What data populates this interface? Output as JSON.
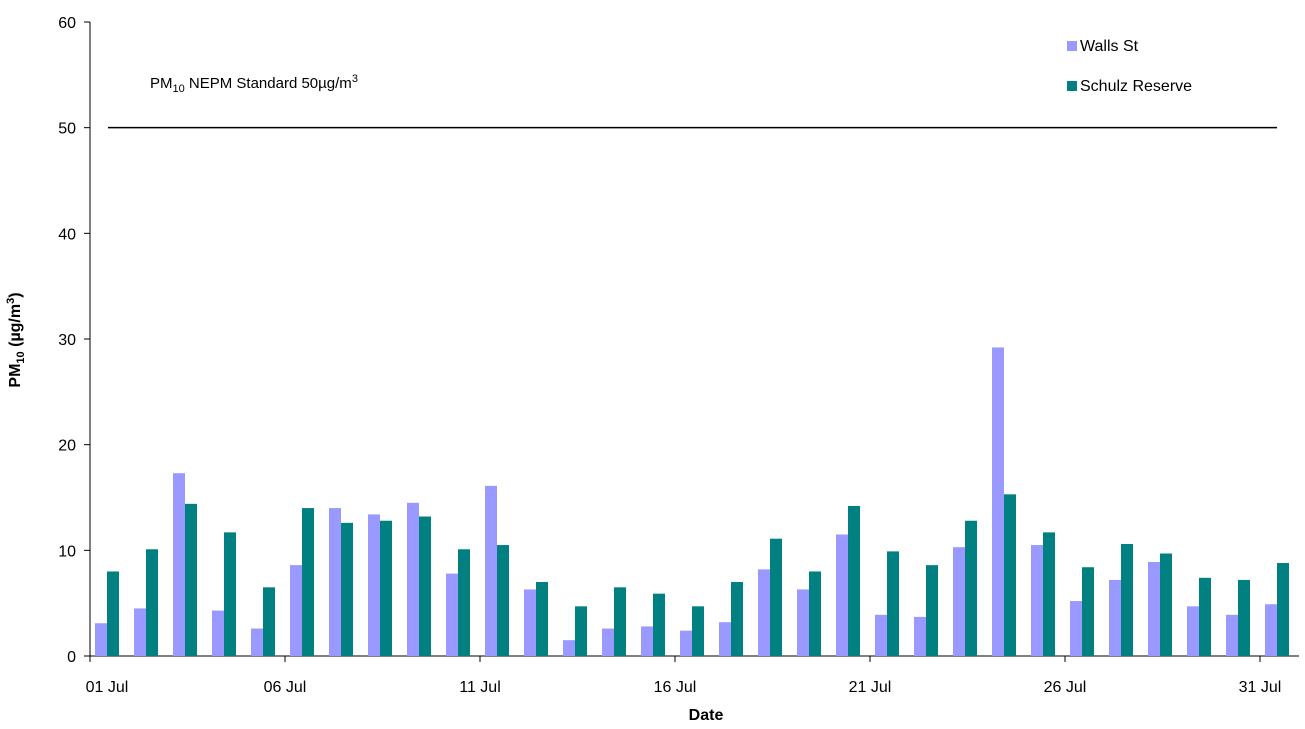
{
  "chart_data": {
    "type": "bar",
    "ylabel_parts": [
      "PM",
      "10",
      " (µg/m",
      "3",
      ")"
    ],
    "xlabel": "Date",
    "annotation_parts": [
      "PM",
      "10",
      " NEPM Standard 50µg/m",
      "3"
    ],
    "reference_line": 50,
    "categories": [
      "01 Jul",
      null,
      null,
      null,
      null,
      "06 Jul",
      null,
      null,
      null,
      null,
      "11 Jul",
      null,
      null,
      null,
      null,
      "16 Jul",
      null,
      null,
      null,
      null,
      "21 Jul",
      null,
      null,
      null,
      null,
      "26 Jul",
      null,
      null,
      null,
      null,
      "31 Jul"
    ],
    "series": [
      {
        "name": "Walls St",
        "color": "#9999ff",
        "values": [
          3.1,
          4.5,
          17.3,
          4.3,
          2.6,
          8.6,
          14.0,
          13.4,
          14.5,
          7.8,
          16.1,
          6.3,
          1.5,
          2.6,
          2.8,
          2.4,
          3.2,
          8.2,
          6.3,
          11.5,
          3.9,
          3.7,
          10.3,
          29.2,
          10.5,
          5.2,
          7.2,
          8.9,
          4.7,
          3.9,
          4.9
        ]
      },
      {
        "name": "Schulz Reserve",
        "color": "#008080",
        "values": [
          8.0,
          10.1,
          14.4,
          11.7,
          6.5,
          14.0,
          12.6,
          12.8,
          13.2,
          10.1,
          10.5,
          7.0,
          4.7,
          6.5,
          5.9,
          4.7,
          7.0,
          11.1,
          8.0,
          14.2,
          9.9,
          8.6,
          12.8,
          15.3,
          11.7,
          8.4,
          10.6,
          9.7,
          7.4,
          7.2,
          8.8
        ]
      }
    ],
    "ylim": [
      0,
      60
    ],
    "yticks": [
      0,
      10,
      20,
      30,
      40,
      50,
      60
    ],
    "grid": false
  }
}
